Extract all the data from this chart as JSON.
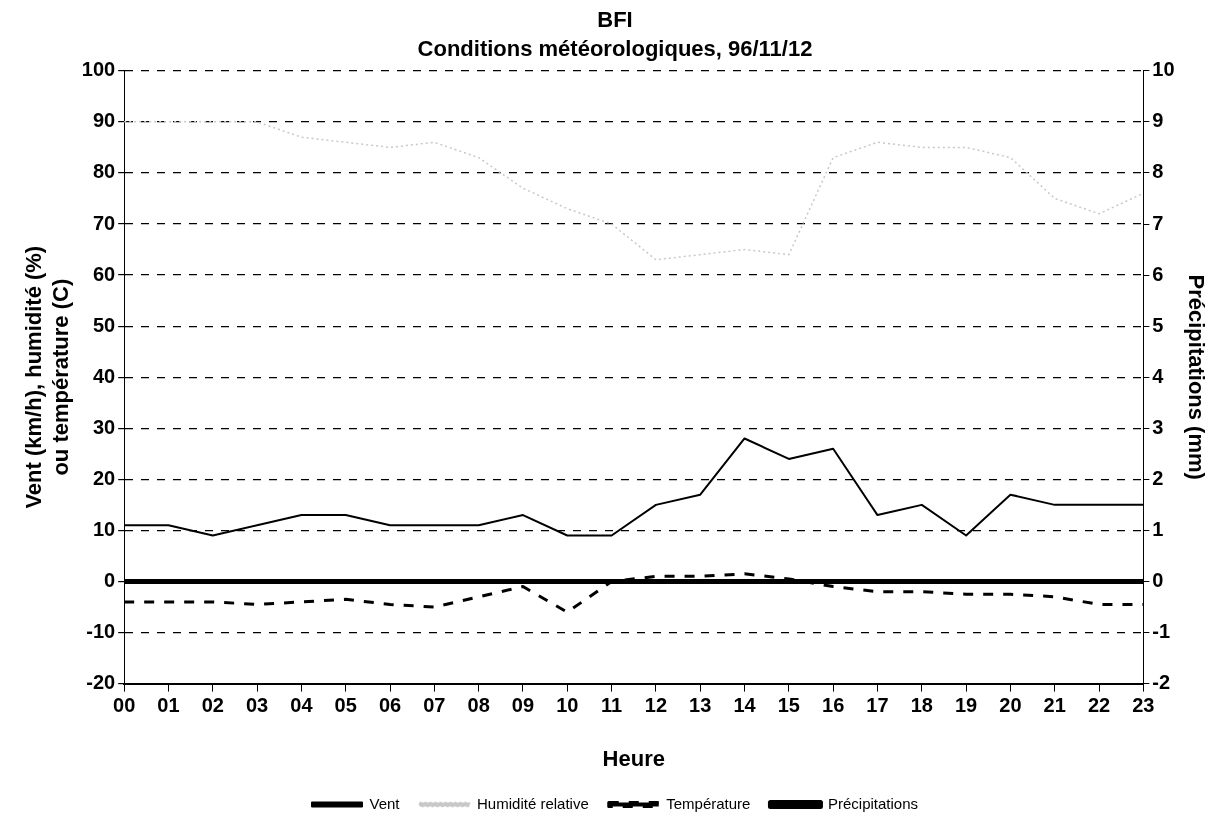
{
  "chart_data": {
    "type": "line",
    "title": "BFI",
    "subtitle": "Conditions météorologiques, 96/11/12",
    "xlabel": "Heure",
    "ylabel": "Vent (km/h), humidité (%)\nou température (C)",
    "y2label": "Précipitations (mm)",
    "categories": [
      "00",
      "01",
      "02",
      "03",
      "04",
      "05",
      "06",
      "07",
      "08",
      "09",
      "10",
      "11",
      "12",
      "13",
      "14",
      "15",
      "16",
      "17",
      "18",
      "19",
      "20",
      "21",
      "22",
      "23"
    ],
    "series": [
      {
        "name": "Vent",
        "color": "#000000",
        "line_style": "solid",
        "values": [
          11,
          11,
          9,
          11,
          13,
          13,
          11,
          11,
          11,
          13,
          9,
          9,
          15,
          17,
          28,
          24,
          26,
          13,
          15,
          9,
          17,
          15,
          15,
          15
        ]
      },
      {
        "name": "Humidité relative",
        "color": "#c8c8c8",
        "line_style": "dotted",
        "values": [
          90,
          90,
          90,
          90,
          87,
          86,
          85,
          86,
          83,
          77,
          73,
          70,
          63,
          64,
          65,
          64,
          83,
          86,
          85,
          85,
          83,
          75,
          72,
          76
        ]
      },
      {
        "name": "Température",
        "color": "#000000",
        "line_style": "dashed",
        "values": [
          -4,
          -4,
          -4,
          -4.5,
          -4,
          -3.5,
          -4.5,
          -5,
          -3,
          -1,
          -6,
          0,
          1,
          1,
          1.5,
          0.5,
          -1,
          -2,
          -2,
          -2.5,
          -2.5,
          -3,
          -4.5,
          -4.5
        ]
      },
      {
        "name": "Précipitations",
        "color": "#000000",
        "line_style": "solid",
        "axis": "y2",
        "values": [
          0,
          0,
          0,
          0,
          0,
          0,
          0,
          0,
          0,
          0,
          0,
          0,
          0,
          0,
          0,
          0,
          0,
          0,
          0,
          0,
          0,
          0,
          0,
          0
        ]
      }
    ],
    "ylim": [
      -20,
      100
    ],
    "yticks": [
      -20,
      -10,
      0,
      10,
      20,
      30,
      40,
      50,
      60,
      70,
      80,
      90,
      100
    ],
    "y2lim": [
      -2,
      10
    ],
    "y2ticks": [
      -2,
      -1,
      0,
      1,
      2,
      3,
      4,
      5,
      6,
      7,
      8,
      9,
      10
    ],
    "grid": "y",
    "legend": "bottom",
    "marker": "none"
  }
}
